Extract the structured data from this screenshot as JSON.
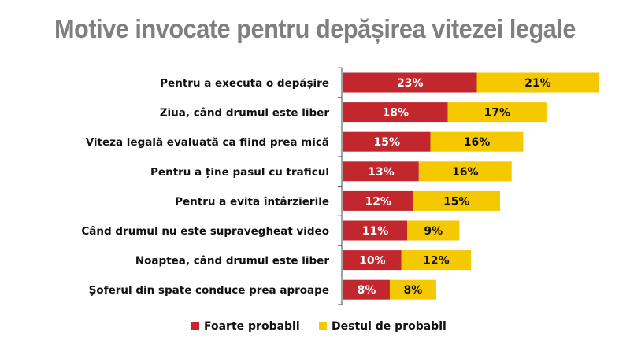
{
  "chart_data": {
    "type": "bar",
    "orientation": "horizontal",
    "stacked": true,
    "title": "Motive invocate pentru depășirea vitezei legale",
    "categories": [
      "Pentru a executa o depășire",
      "Ziua, când drumul este liber",
      "Viteza legală evaluată ca fiind prea mică",
      "Pentru a ține pasul cu traficul",
      "Pentru a evita întârzierile",
      "Când drumul nu este supravegheat video",
      "Noaptea, când drumul este liber",
      "Șoferul din spate conduce prea aproape"
    ],
    "series": [
      {
        "name": "Foarte probabil",
        "color": "#c1272d",
        "label_color": "#ffffff",
        "values": [
          23,
          18,
          15,
          13,
          12,
          11,
          10,
          8
        ]
      },
      {
        "name": "Destul de probabil",
        "color": "#f5c900",
        "label_color": "#111111",
        "values": [
          21,
          17,
          16,
          16,
          15,
          9,
          12,
          8
        ]
      }
    ],
    "value_suffix": "%",
    "legend_position": "bottom",
    "grid": false
  }
}
